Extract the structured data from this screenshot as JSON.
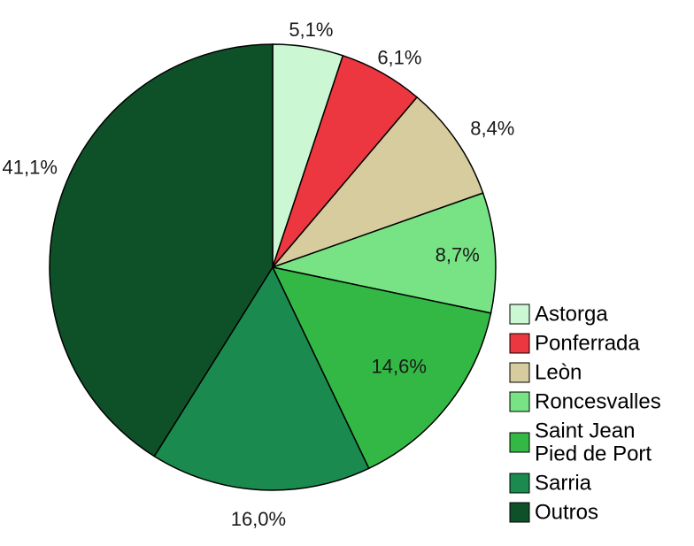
{
  "chart_data": {
    "type": "pie",
    "start_angle_deg": 0,
    "direction": "clockwise",
    "legend_position": "right",
    "slices": [
      {
        "label": "Astorga",
        "legend": [
          "Astorga"
        ],
        "value": 5.1,
        "value_label": "5,1%",
        "color": "#ccf7d3"
      },
      {
        "label": "Ponferrada",
        "legend": [
          "Ponferrada"
        ],
        "value": 6.1,
        "value_label": "6,1%",
        "color": "#ec3740"
      },
      {
        "label": "Leòn",
        "legend": [
          "Leòn"
        ],
        "value": 8.4,
        "value_label": "8,4%",
        "color": "#d6cc9e"
      },
      {
        "label": "Roncesvalles",
        "legend": [
          "Roncesvalles"
        ],
        "value": 8.7,
        "value_label": "8,7%",
        "color": "#77e384"
      },
      {
        "label": "Saint Jean Pied de Port",
        "legend": [
          "Saint Jean",
          "Pied de Port"
        ],
        "value": 14.6,
        "value_label": "14,6%",
        "color": "#34b845"
      },
      {
        "label": "Sarria",
        "legend": [
          "Sarria"
        ],
        "value": 16.0,
        "value_label": "16,0%",
        "color": "#1a8a4e"
      },
      {
        "label": "Outros",
        "legend": [
          "Outros"
        ],
        "value": 41.1,
        "value_label": "41,1%",
        "color": "#0e5128"
      }
    ]
  }
}
